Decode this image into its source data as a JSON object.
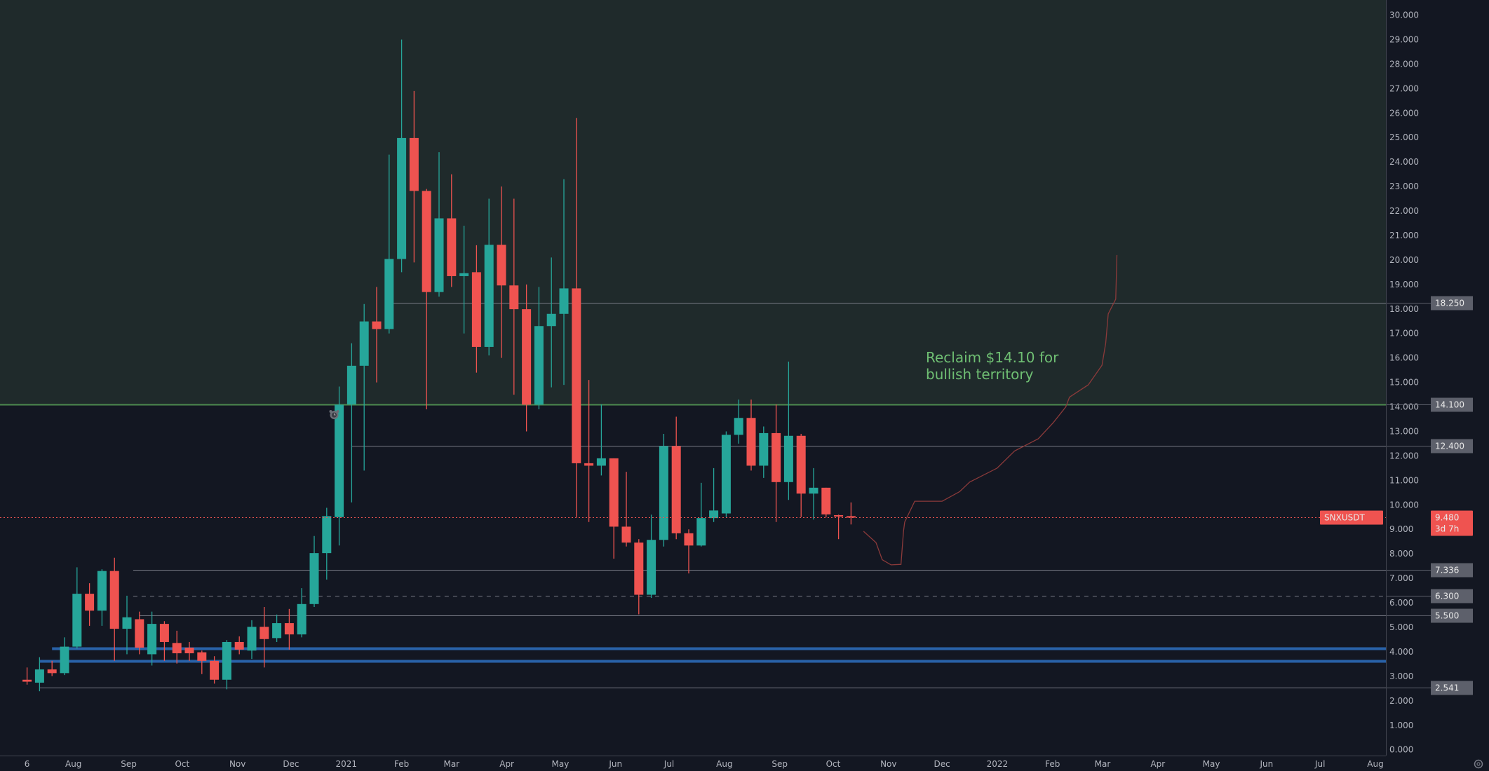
{
  "symbol": "SNXUSDT",
  "last_price": "9.480",
  "countdown": "3d 7h",
  "colors": {
    "up": "#26a69a",
    "down": "#ef5350",
    "background": "#131722",
    "zone_above": "#1f2a2b",
    "level_gray": "#787b86",
    "level_green": "#4c8a4f",
    "level_blue": "#2962a8",
    "projection": "#8b3a3a",
    "annotation": "#6fbf73"
  },
  "annotation": {
    "line1": "Reclaim $14.10 for",
    "line2": "bullish territory"
  },
  "price_axis": {
    "min": 0,
    "max": 30,
    "labels": [
      "0.000",
      "1.000",
      "2.000",
      "3.000",
      "4.000",
      "5.000",
      "6.000",
      "7.000",
      "8.000",
      "9.000",
      "10.000",
      "11.000",
      "12.000",
      "13.000",
      "14.000",
      "15.000",
      "16.000",
      "17.000",
      "18.000",
      "19.000",
      "20.000",
      "21.000",
      "22.000",
      "23.000",
      "24.000",
      "25.000",
      "26.000",
      "27.000",
      "28.000",
      "29.000",
      "30.000"
    ]
  },
  "levels": [
    {
      "price": 18.25,
      "label": "18.250",
      "style": "solid",
      "kind": "gray",
      "start_week": 29
    },
    {
      "price": 14.1,
      "label": "14.100",
      "style": "solid",
      "kind": "green",
      "start_week": -3
    },
    {
      "price": 12.4,
      "label": "12.400",
      "style": "solid",
      "kind": "gray",
      "start_week": 26
    },
    {
      "price": 7.336,
      "label": "7.336",
      "style": "solid",
      "kind": "gray",
      "start_week": 8.5
    },
    {
      "price": 6.3,
      "label": "6.300",
      "style": "dashed",
      "kind": "gray",
      "start_week": 8.5
    },
    {
      "price": 5.5,
      "label": "5.500",
      "style": "solid",
      "kind": "gray",
      "start_week": 9
    },
    {
      "price": 4.14,
      "label": "",
      "style": "thick",
      "kind": "blue",
      "start_week": 2
    },
    {
      "price": 3.63,
      "label": "",
      "style": "thick",
      "kind": "blue",
      "start_week": 1
    },
    {
      "price": 2.541,
      "label": "2.541",
      "style": "solid",
      "kind": "gray",
      "start_week": 1
    }
  ],
  "time_axis": [
    {
      "label": "6",
      "date": "2020-07-06"
    },
    {
      "label": "Aug",
      "date": "2020-08-01"
    },
    {
      "label": "Sep",
      "date": "2020-09-01"
    },
    {
      "label": "Oct",
      "date": "2020-10-01"
    },
    {
      "label": "Nov",
      "date": "2020-11-01"
    },
    {
      "label": "Dec",
      "date": "2020-12-01"
    },
    {
      "label": "2021",
      "date": "2021-01-01"
    },
    {
      "label": "Feb",
      "date": "2021-02-01"
    },
    {
      "label": "Mar",
      "date": "2021-03-01"
    },
    {
      "label": "Apr",
      "date": "2021-04-01"
    },
    {
      "label": "May",
      "date": "2021-05-01"
    },
    {
      "label": "Jun",
      "date": "2021-06-01"
    },
    {
      "label": "Jul",
      "date": "2021-07-01"
    },
    {
      "label": "Aug",
      "date": "2021-08-01"
    },
    {
      "label": "Sep",
      "date": "2021-09-01"
    },
    {
      "label": "Oct",
      "date": "2021-10-01"
    },
    {
      "label": "Nov",
      "date": "2021-11-01"
    },
    {
      "label": "Dec",
      "date": "2021-12-01"
    },
    {
      "label": "2022",
      "date": "2022-01-01"
    },
    {
      "label": "Feb",
      "date": "2022-02-01"
    },
    {
      "label": "Mar",
      "date": "2022-03-01"
    },
    {
      "label": "Apr",
      "date": "2022-04-01"
    },
    {
      "label": "May",
      "date": "2022-05-01"
    },
    {
      "label": "Jun",
      "date": "2022-06-01"
    },
    {
      "label": "Jul",
      "date": "2022-07-01"
    },
    {
      "label": "Aug",
      "date": "2022-08-01"
    }
  ],
  "chart_data": {
    "type": "candlestick",
    "interval": "1W",
    "start_date": "2020-07-06",
    "ylim": [
      0,
      30
    ],
    "fields": [
      "open",
      "high",
      "low",
      "close"
    ],
    "candles": [
      [
        2.86,
        3.36,
        2.66,
        2.78
      ],
      [
        2.74,
        3.78,
        2.39,
        3.28
      ],
      [
        3.28,
        3.63,
        3.01,
        3.13
      ],
      [
        3.13,
        4.59,
        3.05,
        4.21
      ],
      [
        4.21,
        7.45,
        4.13,
        6.37
      ],
      [
        6.37,
        6.8,
        5.06,
        5.68
      ],
      [
        5.68,
        7.37,
        5.06,
        7.3
      ],
      [
        7.3,
        7.84,
        3.63,
        4.94
      ],
      [
        4.94,
        6.29,
        3.9,
        5.41
      ],
      [
        5.33,
        5.64,
        3.9,
        4.17
      ],
      [
        3.9,
        5.64,
        3.44,
        5.14
      ],
      [
        5.14,
        5.25,
        3.63,
        4.4
      ],
      [
        4.36,
        4.86,
        3.52,
        3.94
      ],
      [
        4.17,
        4.4,
        3.63,
        3.94
      ],
      [
        3.98,
        4.05,
        3.09,
        3.63
      ],
      [
        3.63,
        3.82,
        2.7,
        2.86
      ],
      [
        2.86,
        4.48,
        2.47,
        4.4
      ],
      [
        4.4,
        4.63,
        3.9,
        4.09
      ],
      [
        4.05,
        5.29,
        3.71,
        5.02
      ],
      [
        5.02,
        5.83,
        3.36,
        4.52
      ],
      [
        4.56,
        5.52,
        4.4,
        5.17
      ],
      [
        5.17,
        5.75,
        4.09,
        4.71
      ],
      [
        4.71,
        6.6,
        4.59,
        5.95
      ],
      [
        5.95,
        8.73,
        5.83,
        8.03
      ],
      [
        8.03,
        9.88,
        6.95,
        9.54
      ],
      [
        9.5,
        14.83,
        8.34,
        14.09
      ],
      [
        14.1,
        16.6,
        10.1,
        15.68
      ],
      [
        15.68,
        18.2,
        11.4,
        17.49
      ],
      [
        17.49,
        18.9,
        15.0,
        17.18
      ],
      [
        17.18,
        24.3,
        17.0,
        20.04
      ],
      [
        20.04,
        29.0,
        19.5,
        24.98
      ],
      [
        24.98,
        26.9,
        19.9,
        22.82
      ],
      [
        22.82,
        22.9,
        13.9,
        18.69
      ],
      [
        18.69,
        24.4,
        18.5,
        21.7
      ],
      [
        21.7,
        23.5,
        18.9,
        19.34
      ],
      [
        19.34,
        21.4,
        17.0,
        19.46
      ],
      [
        19.5,
        20.6,
        15.4,
        16.45
      ],
      [
        16.45,
        22.5,
        16.1,
        20.62
      ],
      [
        20.62,
        23.0,
        16.0,
        18.96
      ],
      [
        18.96,
        22.5,
        14.5,
        17.99
      ],
      [
        17.99,
        19.0,
        13.0,
        14.09
      ],
      [
        14.09,
        18.9,
        13.9,
        17.3
      ],
      [
        17.3,
        20.1,
        14.8,
        17.8
      ],
      [
        17.8,
        23.3,
        14.9,
        18.84
      ],
      [
        18.84,
        25.8,
        9.5,
        11.7
      ],
      [
        11.7,
        15.1,
        9.3,
        11.6
      ],
      [
        11.6,
        14.1,
        11.2,
        11.9
      ],
      [
        11.9,
        11.9,
        7.8,
        9.11
      ],
      [
        9.11,
        11.35,
        8.3,
        8.46
      ],
      [
        8.46,
        8.6,
        5.53,
        6.33
      ],
      [
        6.33,
        9.6,
        6.2,
        8.57
      ],
      [
        8.57,
        12.9,
        8.3,
        12.4
      ],
      [
        12.4,
        13.6,
        8.6,
        8.84
      ],
      [
        8.84,
        9.0,
        7.2,
        8.34
      ],
      [
        8.34,
        10.9,
        8.3,
        9.46
      ],
      [
        9.46,
        11.5,
        9.3,
        9.77
      ],
      [
        9.65,
        13.0,
        9.5,
        12.86
      ],
      [
        12.86,
        14.3,
        12.5,
        13.55
      ],
      [
        13.55,
        14.3,
        11.4,
        11.6
      ],
      [
        11.6,
        13.2,
        11.1,
        12.93
      ],
      [
        12.93,
        14.1,
        9.3,
        10.93
      ],
      [
        10.93,
        15.85,
        10.2,
        12.82
      ],
      [
        12.82,
        12.9,
        9.5,
        10.46
      ],
      [
        10.46,
        11.5,
        9.4,
        10.7
      ],
      [
        10.7,
        10.7,
        9.5,
        9.61
      ],
      [
        9.58,
        9.6,
        8.6,
        9.54
      ],
      [
        9.54,
        10.1,
        9.2,
        9.48
      ]
    ],
    "projection": [
      [
        67.0,
        8.92
      ],
      [
        68.0,
        8.46
      ],
      [
        68.5,
        7.76
      ],
      [
        69.2,
        7.55
      ],
      [
        70.0,
        7.57
      ],
      [
        70.2,
        8.92
      ],
      [
        70.3,
        9.3
      ],
      [
        71.1,
        10.15
      ],
      [
        73.3,
        10.15
      ],
      [
        74.7,
        10.54
      ],
      [
        75.5,
        10.93
      ],
      [
        77.7,
        11.5
      ],
      [
        79.1,
        12.2
      ],
      [
        81.0,
        12.7
      ],
      [
        82.2,
        13.36
      ],
      [
        83.2,
        14.0
      ],
      [
        83.5,
        14.4
      ],
      [
        85.0,
        14.9
      ],
      [
        86.1,
        15.7
      ],
      [
        86.4,
        16.6
      ],
      [
        86.6,
        17.8
      ],
      [
        87.2,
        18.4
      ],
      [
        87.3,
        20.2
      ]
    ]
  }
}
